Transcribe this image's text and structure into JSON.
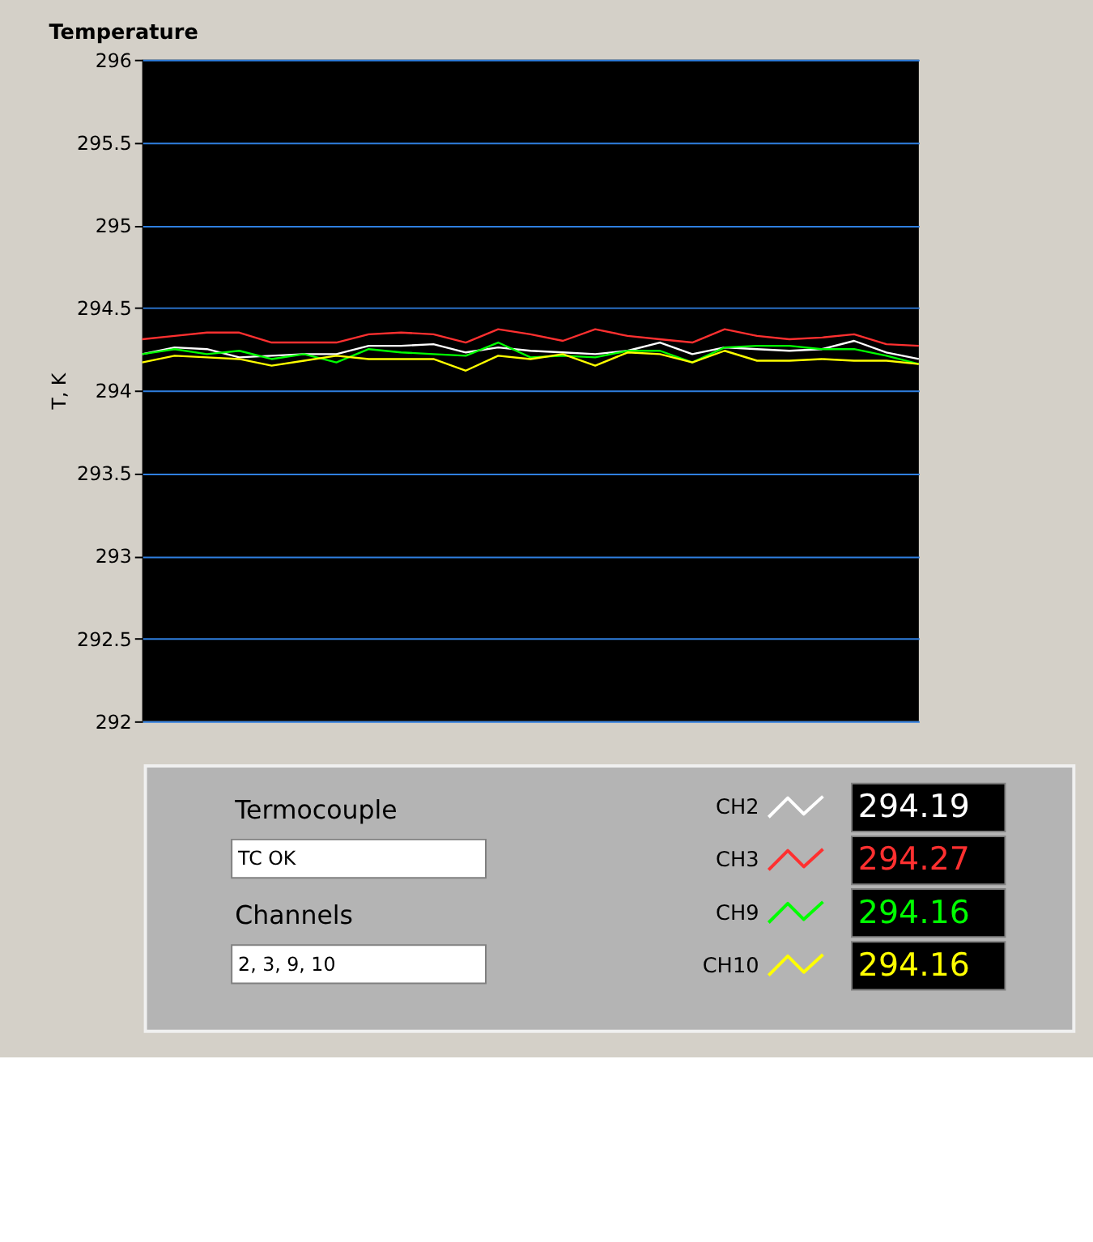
{
  "chart_data": {
    "type": "line",
    "title": "Temperature",
    "ylabel": "T, K",
    "categories": [
      null,
      null,
      null,
      null,
      null,
      null,
      null,
      null,
      null,
      null,
      null,
      null,
      null,
      null,
      null,
      null,
      null,
      null,
      null,
      null,
      null,
      null,
      null,
      null,
      null
    ],
    "series": [
      {
        "name": "CH2",
        "color": "#ffffff",
        "values": [
          294.22,
          294.26,
          294.25,
          294.2,
          294.21,
          294.22,
          294.22,
          294.27,
          294.27,
          294.28,
          294.23,
          294.26,
          294.24,
          294.23,
          294.22,
          294.24,
          294.29,
          294.22,
          294.26,
          294.25,
          294.24,
          294.25,
          294.3,
          294.23,
          294.19
        ]
      },
      {
        "name": "CH3",
        "color": "#ff3030",
        "values": [
          294.31,
          294.33,
          294.35,
          294.35,
          294.29,
          294.29,
          294.29,
          294.34,
          294.35,
          294.34,
          294.29,
          294.37,
          294.34,
          294.3,
          294.37,
          294.33,
          294.31,
          294.29,
          294.37,
          294.33,
          294.31,
          294.32,
          294.34,
          294.28,
          294.27
        ]
      },
      {
        "name": "CH9",
        "color": "#00ff00",
        "values": [
          294.22,
          294.25,
          294.22,
          294.24,
          294.19,
          294.22,
          294.17,
          294.25,
          294.23,
          294.22,
          294.21,
          294.29,
          294.2,
          294.21,
          294.2,
          294.24,
          294.24,
          294.17,
          294.26,
          294.27,
          294.27,
          294.25,
          294.25,
          294.21,
          294.16
        ]
      },
      {
        "name": "CH10",
        "color": "#ffff00",
        "values": [
          294.17,
          294.21,
          294.2,
          294.19,
          294.15,
          294.18,
          294.21,
          294.19,
          294.19,
          294.19,
          294.12,
          294.21,
          294.19,
          294.22,
          294.15,
          294.23,
          294.22,
          294.17,
          294.24,
          294.18,
          294.18,
          294.19,
          294.18,
          294.18,
          294.16
        ]
      }
    ],
    "ylim": [
      292,
      296
    ],
    "yticks": [
      292,
      292.5,
      293,
      293.5,
      294,
      294.5,
      295,
      295.5,
      296
    ],
    "grid": "y",
    "tick_labels": "y",
    "legend": "bottom",
    "line_style": "solid",
    "marker": "none",
    "annotations": [
      "Termocouple",
      "TC OK",
      "Channels",
      "2, 3, 9, 10",
      "294.19",
      "294.27",
      "294.16",
      "294.16"
    ]
  }
}
